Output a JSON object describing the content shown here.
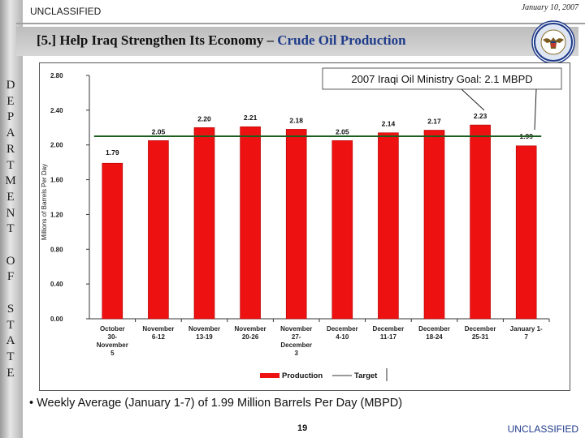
{
  "header": {
    "classification": "UNCLASSIFIED",
    "date": "January 10, 2007",
    "title_prefix": "[5.] Help Iraq Strengthen Its Economy – ",
    "title_highlight": "Crude Oil Production"
  },
  "side_label": [
    "D",
    "E",
    "P",
    "A",
    "R",
    "T",
    "M",
    "E",
    "N",
    "T",
    "",
    "O",
    "F",
    "",
    "S",
    "T",
    "A",
    "T",
    "E"
  ],
  "footer": {
    "bullet": "• Weekly Average (January 1-7) of 1.99 Million Barrels Per Day (MBPD)",
    "page_number": "19",
    "classification": "UNCLASSIFIED"
  },
  "colors": {
    "bar": "#ee1111",
    "target": "#1b5e20",
    "title_highlight": "#1f3b8a"
  },
  "chart_data": {
    "type": "bar",
    "ylabel": "Millions of Barrels Per Day",
    "ylim": [
      0,
      2.8
    ],
    "yticks": [
      "0.00",
      "0.40",
      "0.80",
      "1.20",
      "1.60",
      "2.00",
      "2.40",
      "2.80"
    ],
    "categories": [
      [
        "October",
        "30-",
        "November",
        "5"
      ],
      [
        "November",
        "6-12"
      ],
      [
        "November",
        "13-19"
      ],
      [
        "November",
        "20-26"
      ],
      [
        "November",
        "27-",
        "December",
        "3"
      ],
      [
        "December",
        "4-10"
      ],
      [
        "December",
        "11-17"
      ],
      [
        "December",
        "18-24"
      ],
      [
        "December",
        "25-31"
      ],
      [
        "January 1-",
        "7"
      ]
    ],
    "series": [
      {
        "name": "Production",
        "values": [
          1.79,
          2.05,
          2.2,
          2.21,
          2.18,
          2.05,
          2.14,
          2.17,
          2.23,
          1.99
        ],
        "labels": [
          "1.79",
          "2.05",
          "2.20",
          "2.21",
          "2.18",
          "2.05",
          "2.14",
          "2.17",
          "2.23",
          "1.99"
        ]
      },
      {
        "name": "Target",
        "value": 2.1
      }
    ],
    "legend": [
      "Production",
      "Target"
    ],
    "annotation": "2007 Iraqi Oil Ministry Goal:  2.1 MBPD"
  }
}
